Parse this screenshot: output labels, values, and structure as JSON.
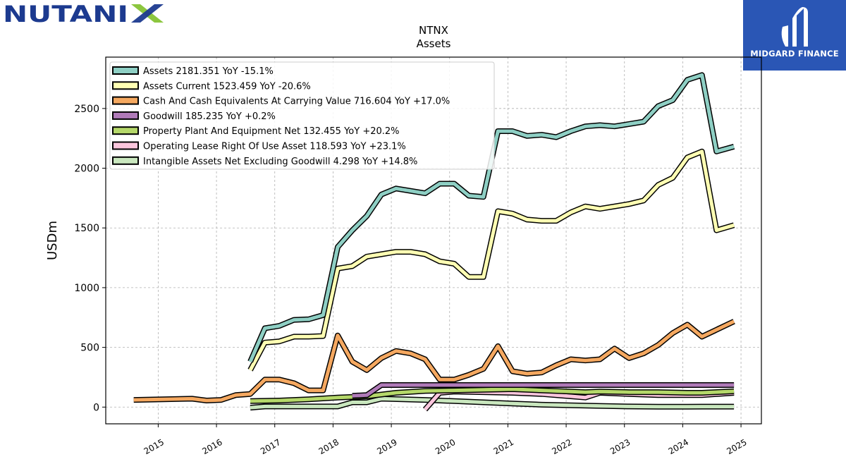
{
  "branding": {
    "left_logo_text": "NUTANIX",
    "right_logo_text": "MIDGARD FINANCE",
    "colors": {
      "nutanix_blue": "#1c3a8f",
      "nutanix_green": "#8cc63f",
      "midgard_blue": "#2a56b5"
    }
  },
  "chart_data": {
    "type": "line",
    "title": "NTNX",
    "subtitle": "Assets",
    "ylabel": "USDm",
    "xlabel": "",
    "ylim": [
      -140,
      2930
    ],
    "xlim": [
      2014.1,
      2025.35
    ],
    "yticks": [
      0,
      500,
      1000,
      1500,
      2000,
      2500
    ],
    "xticks": [
      "2015",
      "2016",
      "2017",
      "2018",
      "2019",
      "2020",
      "2021",
      "2022",
      "2023",
      "2024",
      "2025"
    ],
    "grid": true,
    "legend_position": "top-left",
    "series": [
      {
        "name": "Assets  2181.351 YoY -15.1%",
        "color": "#8ecfc4",
        "points": [
          [
            2016.58,
            380
          ],
          [
            2016.83,
            660
          ],
          [
            2017.08,
            680
          ],
          [
            2017.33,
            730
          ],
          [
            2017.58,
            735
          ],
          [
            2017.83,
            770
          ],
          [
            2018.08,
            1340
          ],
          [
            2018.33,
            1480
          ],
          [
            2018.58,
            1600
          ],
          [
            2018.83,
            1780
          ],
          [
            2019.08,
            1830
          ],
          [
            2019.33,
            1810
          ],
          [
            2019.58,
            1790
          ],
          [
            2019.83,
            1870
          ],
          [
            2020.08,
            1870
          ],
          [
            2020.33,
            1770
          ],
          [
            2020.58,
            1760
          ],
          [
            2020.83,
            2310
          ],
          [
            2021.08,
            2310
          ],
          [
            2021.33,
            2270
          ],
          [
            2021.58,
            2280
          ],
          [
            2021.83,
            2260
          ],
          [
            2022.08,
            2310
          ],
          [
            2022.33,
            2350
          ],
          [
            2022.58,
            2360
          ],
          [
            2022.83,
            2350
          ],
          [
            2023.08,
            2370
          ],
          [
            2023.33,
            2390
          ],
          [
            2023.58,
            2520
          ],
          [
            2023.83,
            2570
          ],
          [
            2024.08,
            2740
          ],
          [
            2024.33,
            2780
          ],
          [
            2024.58,
            2140
          ],
          [
            2024.88,
            2181
          ]
        ]
      },
      {
        "name": "Assets Current  1523.459 YoY -20.6%",
        "color": "#ffffb3",
        "points": [
          [
            2016.58,
            310
          ],
          [
            2016.83,
            540
          ],
          [
            2017.08,
            550
          ],
          [
            2017.33,
            590
          ],
          [
            2017.58,
            590
          ],
          [
            2017.83,
            595
          ],
          [
            2018.08,
            1160
          ],
          [
            2018.33,
            1180
          ],
          [
            2018.58,
            1260
          ],
          [
            2018.83,
            1280
          ],
          [
            2019.08,
            1300
          ],
          [
            2019.33,
            1300
          ],
          [
            2019.58,
            1280
          ],
          [
            2019.83,
            1220
          ],
          [
            2020.08,
            1200
          ],
          [
            2020.33,
            1090
          ],
          [
            2020.58,
            1090
          ],
          [
            2020.83,
            1640
          ],
          [
            2021.08,
            1620
          ],
          [
            2021.33,
            1570
          ],
          [
            2021.58,
            1560
          ],
          [
            2021.83,
            1560
          ],
          [
            2022.08,
            1630
          ],
          [
            2022.33,
            1680
          ],
          [
            2022.58,
            1660
          ],
          [
            2022.83,
            1680
          ],
          [
            2023.08,
            1700
          ],
          [
            2023.33,
            1730
          ],
          [
            2023.58,
            1860
          ],
          [
            2023.83,
            1920
          ],
          [
            2024.08,
            2090
          ],
          [
            2024.33,
            2140
          ],
          [
            2024.58,
            1480
          ],
          [
            2024.88,
            1523
          ]
        ]
      },
      {
        "name": "Cash And Cash Equivalents At Carrying Value  716.604 YoY +17.0%",
        "color": "#f5a860",
        "points": [
          [
            2014.58,
            60
          ],
          [
            2015.58,
            70
          ],
          [
            2015.83,
            55
          ],
          [
            2016.08,
            60
          ],
          [
            2016.33,
            100
          ],
          [
            2016.58,
            110
          ],
          [
            2016.83,
            230
          ],
          [
            2017.08,
            230
          ],
          [
            2017.33,
            200
          ],
          [
            2017.58,
            140
          ],
          [
            2017.83,
            140
          ],
          [
            2018.08,
            600
          ],
          [
            2018.33,
            380
          ],
          [
            2018.58,
            310
          ],
          [
            2018.83,
            410
          ],
          [
            2019.08,
            470
          ],
          [
            2019.33,
            450
          ],
          [
            2019.58,
            400
          ],
          [
            2019.83,
            230
          ],
          [
            2020.08,
            230
          ],
          [
            2020.33,
            270
          ],
          [
            2020.58,
            320
          ],
          [
            2020.83,
            510
          ],
          [
            2021.08,
            300
          ],
          [
            2021.33,
            280
          ],
          [
            2021.58,
            290
          ],
          [
            2021.83,
            350
          ],
          [
            2022.08,
            400
          ],
          [
            2022.33,
            390
          ],
          [
            2022.58,
            400
          ],
          [
            2022.83,
            490
          ],
          [
            2023.08,
            410
          ],
          [
            2023.33,
            450
          ],
          [
            2023.58,
            520
          ],
          [
            2023.83,
            620
          ],
          [
            2024.08,
            690
          ],
          [
            2024.33,
            590
          ],
          [
            2024.88,
            717
          ]
        ]
      },
      {
        "name": "Goodwill  185.235 YoY +0.2%",
        "color": "#b07ab8",
        "points": [
          [
            2018.33,
            95
          ],
          [
            2018.58,
            100
          ],
          [
            2018.83,
            185
          ],
          [
            2024.88,
            185
          ]
        ]
      },
      {
        "name": "Property Plant And Equipment Net  132.455 YoY +20.2%",
        "color": "#b5d86a",
        "points": [
          [
            2016.58,
            50
          ],
          [
            2017.08,
            55
          ],
          [
            2017.58,
            65
          ],
          [
            2018.08,
            80
          ],
          [
            2018.58,
            90
          ],
          [
            2019.08,
            120
          ],
          [
            2019.58,
            135
          ],
          [
            2020.08,
            140
          ],
          [
            2020.58,
            145
          ],
          [
            2021.08,
            150
          ],
          [
            2021.58,
            140
          ],
          [
            2022.08,
            130
          ],
          [
            2022.33,
            125
          ],
          [
            2022.58,
            130
          ],
          [
            2023.08,
            125
          ],
          [
            2023.58,
            125
          ],
          [
            2024.08,
            120
          ],
          [
            2024.33,
            120
          ],
          [
            2024.88,
            132
          ]
        ]
      },
      {
        "name": "Operating Lease Right Of Use Asset  118.593 YoY +23.1%",
        "color": "#fcc6dd",
        "points": [
          [
            2019.58,
            -20
          ],
          [
            2019.83,
            120
          ],
          [
            2020.08,
            130
          ],
          [
            2020.58,
            125
          ],
          [
            2021.08,
            120
          ],
          [
            2021.58,
            110
          ],
          [
            2022.08,
            90
          ],
          [
            2022.33,
            80
          ],
          [
            2022.58,
            120
          ],
          [
            2023.08,
            110
          ],
          [
            2023.58,
            100
          ],
          [
            2024.08,
            100
          ],
          [
            2024.33,
            100
          ],
          [
            2024.88,
            119
          ]
        ]
      },
      {
        "name": "Intangible Assets Net Excluding Goodwill  4.298 YoY +14.8%",
        "color": "#c9e7be",
        "points": [
          [
            2016.58,
            -5
          ],
          [
            2016.83,
            5
          ],
          [
            2017.08,
            5
          ],
          [
            2017.83,
            5
          ],
          [
            2018.08,
            5
          ],
          [
            2018.33,
            40
          ],
          [
            2018.58,
            40
          ],
          [
            2018.83,
            70
          ],
          [
            2019.58,
            60
          ],
          [
            2020.08,
            50
          ],
          [
            2020.58,
            40
          ],
          [
            2021.08,
            30
          ],
          [
            2021.58,
            20
          ],
          [
            2022.08,
            15
          ],
          [
            2022.58,
            10
          ],
          [
            2023.08,
            5
          ],
          [
            2023.58,
            3
          ],
          [
            2024.08,
            3
          ],
          [
            2024.33,
            4
          ],
          [
            2024.88,
            4
          ]
        ]
      }
    ]
  }
}
